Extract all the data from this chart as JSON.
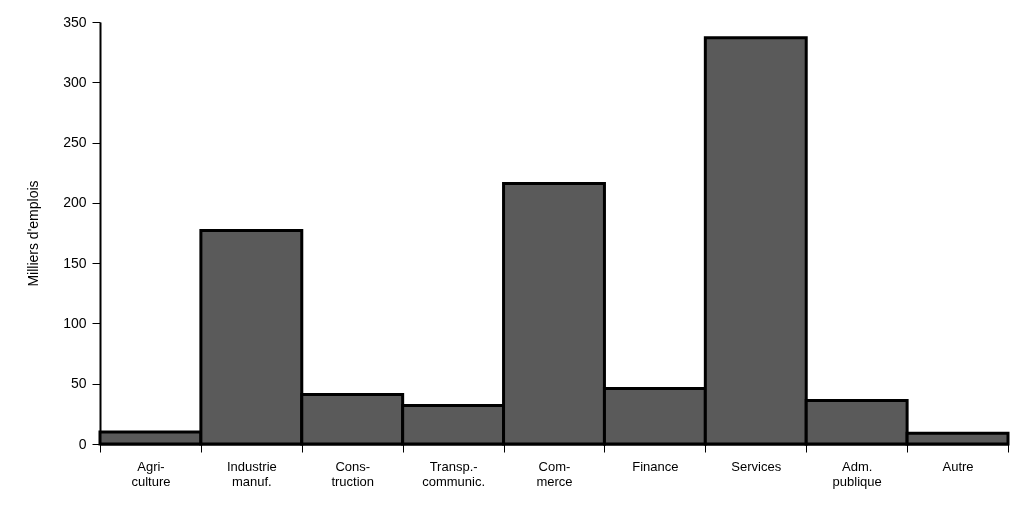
{
  "chart_data": {
    "type": "bar",
    "ylabel": "Milliers d'emplois",
    "categories": [
      "Agri-\nculture",
      "Industrie\nmanuf.",
      "Cons-\ntruction",
      "Transp.-\ncommunic.",
      "Com-\nmerce",
      "Finance",
      "Services",
      "Adm.\npublique",
      "Autre"
    ],
    "values": [
      10,
      177,
      41,
      32,
      216,
      46,
      337,
      36,
      9
    ],
    "color": "#5a5a5a",
    "ylim": [
      0,
      350
    ],
    "yticks": [
      0,
      50,
      100,
      150,
      200,
      250,
      300,
      350
    ],
    "grid": false
  }
}
